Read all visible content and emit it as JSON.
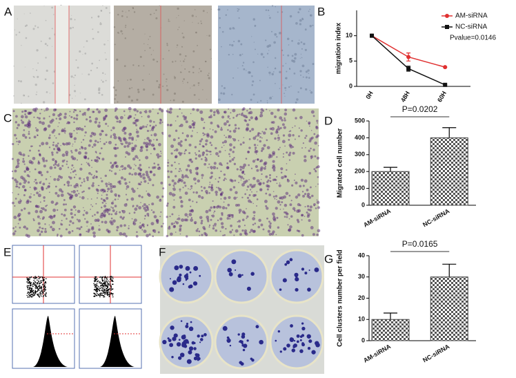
{
  "panels": {
    "a": "A",
    "b": "B",
    "c": "C",
    "d": "D",
    "e": "E",
    "f": "F",
    "g": "G"
  },
  "chart_data": [
    {
      "type": "line",
      "categories": [
        "0H",
        "48H",
        "60H"
      ],
      "y_label": "migration index",
      "ylim": [
        0,
        15
      ],
      "yticks": [
        0,
        5,
        10
      ],
      "legend": "upper right",
      "annotation": "Pvalue=0.0146",
      "series": [
        {
          "name": "AM-siRNA",
          "color": "#e03030",
          "values": [
            10,
            5.8,
            3.8
          ],
          "errors": [
            0,
            0.8,
            0
          ]
        },
        {
          "name": "NC-siRNA",
          "color": "#111111",
          "values": [
            10,
            3.5,
            0.3
          ],
          "errors": [
            0,
            0.5,
            0
          ]
        }
      ]
    },
    {
      "type": "bar",
      "categories": [
        "AM-siRNA",
        "NC-siRNA"
      ],
      "values": [
        200,
        400
      ],
      "errors": [
        25,
        60
      ],
      "y_label": "Migrated cell number",
      "ylim": [
        0,
        500
      ],
      "yticks": [
        0,
        100,
        200,
        300,
        400,
        500
      ],
      "annotation": "P=0.0202",
      "color": "#444444"
    },
    {
      "type": "bar",
      "categories": [
        "AM-siRNA",
        "NC-siRNA"
      ],
      "values": [
        10,
        30
      ],
      "errors": [
        3,
        6
      ],
      "y_label": "Cell clusters number per field",
      "ylim": [
        0,
        40
      ],
      "yticks": [
        0,
        10,
        20,
        30,
        40
      ],
      "annotation": "P=0.0165",
      "color": "#444444"
    }
  ]
}
